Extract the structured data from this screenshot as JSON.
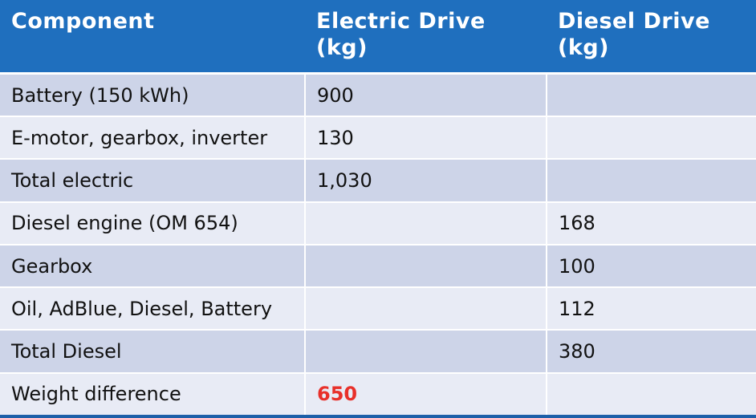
{
  "table": {
    "header": [
      "Component",
      "Electric Drive (kg)",
      "Diesel Drive (kg)"
    ],
    "rows": [
      [
        "Battery (150 kWh)",
        "900",
        null
      ],
      [
        "E-motor, gearbox, inverter",
        "130",
        null
      ],
      [
        "Total electric",
        "1,030",
        null
      ],
      [
        "Diesel engine (OM 654)",
        null,
        "168"
      ],
      [
        "Gearbox",
        null,
        "100"
      ],
      [
        "Oil, AdBlue, Diesel, Battery",
        null,
        "112"
      ],
      [
        "Total Diesel",
        null,
        "380"
      ],
      [
        "Weight difference",
        "650",
        null
      ]
    ]
  }
}
